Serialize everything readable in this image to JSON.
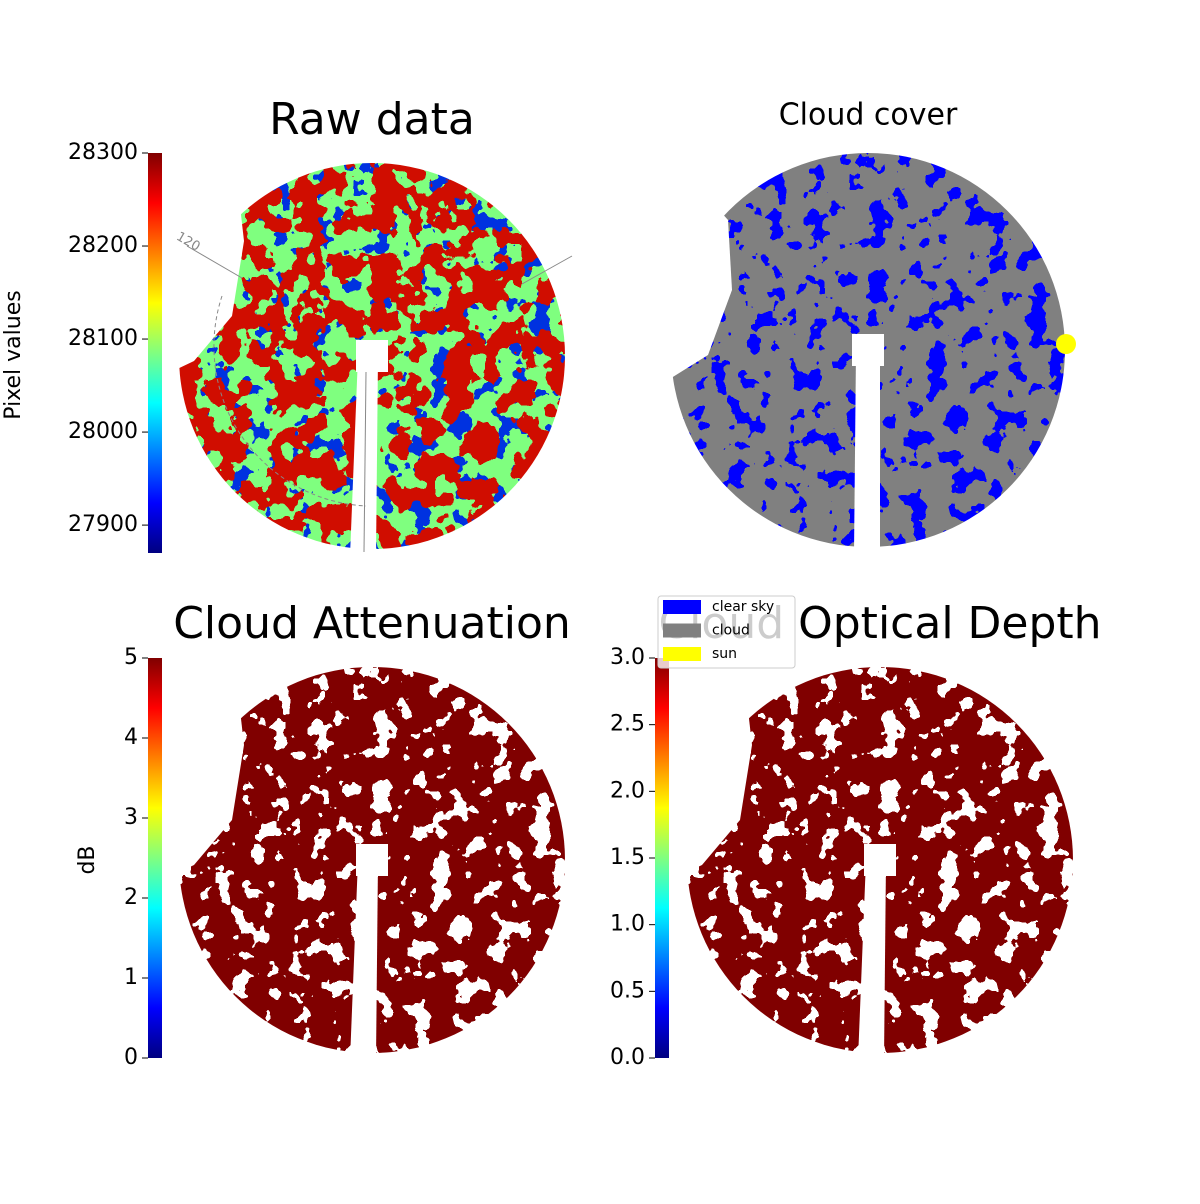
{
  "chart_data": [
    {
      "type": "image",
      "title": "Raw data",
      "colorbar_label": "Pixel values",
      "colormap": "jet",
      "ylim": [
        27870,
        28300
      ],
      "yticks": [
        27900,
        28000,
        28100,
        28200,
        28300
      ],
      "annotations": [
        "120"
      ]
    },
    {
      "type": "image",
      "title": "Cloud cover",
      "series": [
        {
          "name": "clear sky",
          "color": "#0000ff"
        },
        {
          "name": "cloud",
          "color": "#808080"
        },
        {
          "name": "sun",
          "color": "#ffff00"
        }
      ]
    },
    {
      "type": "image",
      "title": "Cloud Attenuation",
      "colorbar_label": "dB",
      "colormap": "jet",
      "ylim": [
        0,
        5
      ],
      "yticks": [
        0,
        1,
        2,
        3,
        4,
        5
      ]
    },
    {
      "type": "image",
      "title": "Cloud Optical Depth",
      "colormap": "jet",
      "ylim": [
        0,
        3
      ],
      "yticks": [
        {
          "value": 0,
          "label": "0.0"
        },
        0.5,
        {
          "value": 1,
          "label": "1.0"
        },
        1.5,
        {
          "value": 2,
          "label": "2.0"
        },
        2.5,
        {
          "value": 3,
          "label": "3.0"
        }
      ]
    }
  ]
}
